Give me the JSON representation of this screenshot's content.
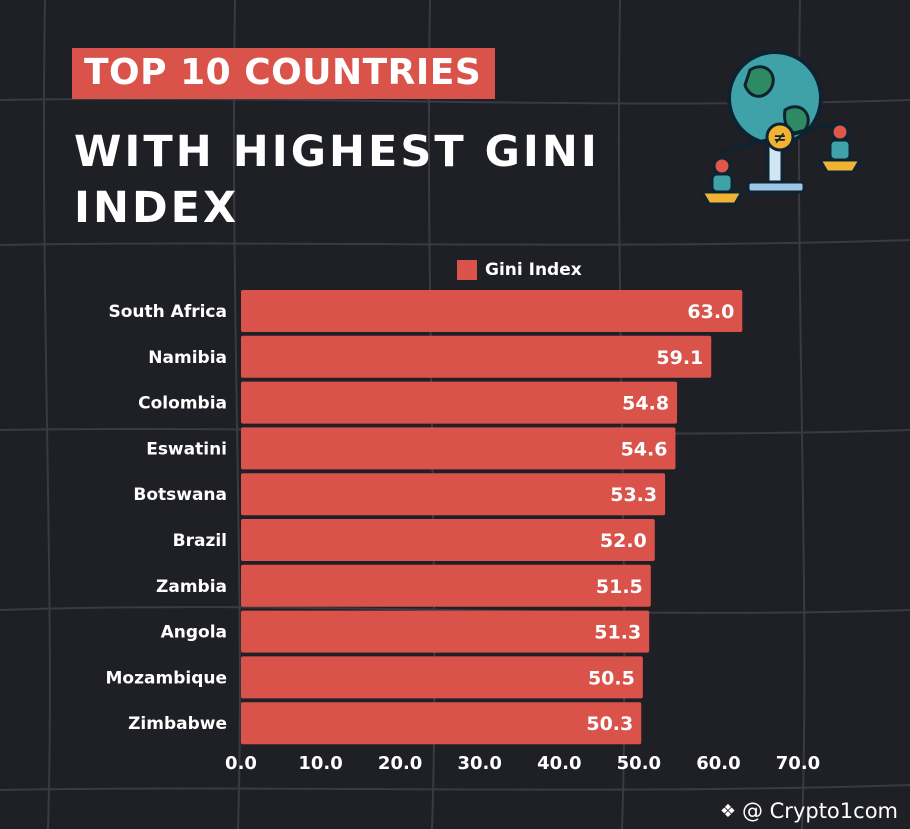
{
  "title_line1": "TOP 10 COUNTRIES",
  "title_line2": "WITH HIGHEST GINI INDEX",
  "legend_label": "Gini Index",
  "watermark": "@ Crypto1com",
  "colors": {
    "background": "#1f1f26",
    "bar": "#d9534a",
    "text": "#ffffff",
    "grid": "#3a3a44"
  },
  "illustration_icon": "globe-scale-inequality-icon",
  "chart_data": {
    "type": "bar",
    "orientation": "horizontal",
    "categories": [
      "South Africa",
      "Namibia",
      "Colombia",
      "Eswatini",
      "Botswana",
      "Brazil",
      "Zambia",
      "Angola",
      "Mozambique",
      "Zimbabwe"
    ],
    "series": [
      {
        "name": "Gini Index",
        "values": [
          63.0,
          59.1,
          54.8,
          54.6,
          53.3,
          52.0,
          51.5,
          51.3,
          50.5,
          50.3
        ]
      }
    ],
    "xticks": [
      "0.0",
      "10.0",
      "20.0",
      "30.0",
      "40.0",
      "50.0",
      "60.0",
      "70.0"
    ],
    "xlim": [
      0,
      70
    ],
    "legend_position": "top",
    "data_labels": true,
    "grid": false
  }
}
